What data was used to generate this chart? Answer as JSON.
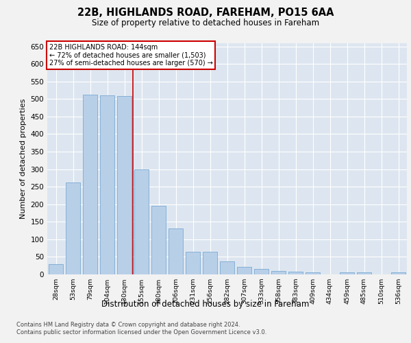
{
  "title_line1": "22B, HIGHLANDS ROAD, FAREHAM, PO15 6AA",
  "title_line2": "Size of property relative to detached houses in Fareham",
  "xlabel": "Distribution of detached houses by size in Fareham",
  "ylabel": "Number of detached properties",
  "categories": [
    "28sqm",
    "53sqm",
    "79sqm",
    "104sqm",
    "130sqm",
    "155sqm",
    "180sqm",
    "206sqm",
    "231sqm",
    "256sqm",
    "282sqm",
    "307sqm",
    "333sqm",
    "358sqm",
    "383sqm",
    "409sqm",
    "434sqm",
    "459sqm",
    "485sqm",
    "510sqm",
    "536sqm"
  ],
  "values": [
    30,
    263,
    512,
    511,
    508,
    300,
    196,
    131,
    65,
    65,
    37,
    22,
    15,
    10,
    7,
    5,
    0,
    5,
    5,
    0,
    5
  ],
  "bar_color": "#b8cfe8",
  "bar_edge_color": "#7aaad4",
  "reference_line_x": 4.5,
  "annotation_line1": "22B HIGHLANDS ROAD: 144sqm",
  "annotation_line2": "← 72% of detached houses are smaller (1,503)",
  "annotation_line3": "27% of semi-detached houses are larger (570) →",
  "annotation_box_facecolor": "#ffffff",
  "annotation_box_edgecolor": "#cc0000",
  "vline_color": "#cc0000",
  "ylim": [
    0,
    660
  ],
  "yticks": [
    0,
    50,
    100,
    150,
    200,
    250,
    300,
    350,
    400,
    450,
    500,
    550,
    600,
    650
  ],
  "footer_line1": "Contains HM Land Registry data © Crown copyright and database right 2024.",
  "footer_line2": "Contains public sector information licensed under the Open Government Licence v3.0.",
  "fig_facecolor": "#f2f2f2",
  "plot_facecolor": "#dde6f0"
}
